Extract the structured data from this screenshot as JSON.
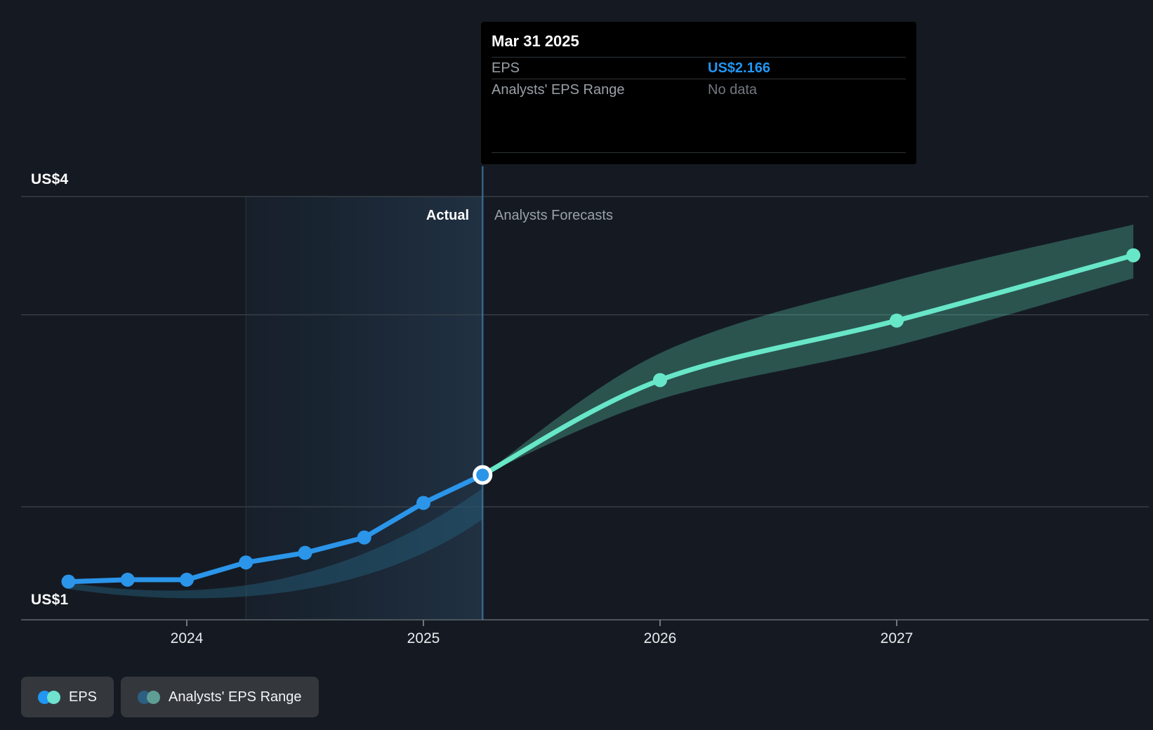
{
  "labels": {
    "actual": "Actual",
    "forecasts": "Analysts Forecasts",
    "y_top": "US$4",
    "y_bottom": "US$1"
  },
  "tooltip": {
    "title": "Mar 31 2025",
    "rows": [
      {
        "label": "EPS",
        "value": "US$2.166"
      },
      {
        "label": "Analysts' EPS Range",
        "value": "No data"
      }
    ]
  },
  "legend": [
    {
      "label": "EPS",
      "dot_colors": [
        "#2196f3",
        "#6fe3cd"
      ]
    },
    {
      "label": "Analysts' EPS Range",
      "dot_colors": [
        "#2d5f82",
        "#5f9e94"
      ]
    }
  ],
  "colors": {
    "background": "#151a22",
    "eps_line": "#2b95ea",
    "forecast_line": "#68e7c8",
    "forecast_band": "#5fd9b8",
    "history_band": "#245c78",
    "value_blue": "#2196f3",
    "gridline": "#3c434b",
    "axis": "#4d545b",
    "divider": "#4788b8",
    "highlight_from": "rgba(56,130,195,0.05)",
    "highlight_to": "rgba(93,170,235,0.16)"
  },
  "chart_data": {
    "type": "line",
    "title": "EPS actual vs analysts forecasts",
    "unit": "US$",
    "x_ticks": [
      2024,
      2025,
      2026,
      2027
    ],
    "x_tick_labels": [
      "2024",
      "2025",
      "2026",
      "2027"
    ],
    "y_axis": {
      "top_label": "US$4",
      "bottom_label": "US$1",
      "top_value": 4,
      "bottom_value": 1
    },
    "series": [
      {
        "name": "EPS",
        "kind": "actual",
        "points": [
          {
            "date": "Jun 30 2023",
            "t": 2023.5,
            "v": 1.61
          },
          {
            "date": "Sep 30 2023",
            "t": 2023.75,
            "v": 1.62
          },
          {
            "date": "Dec 31 2023",
            "t": 2024.0,
            "v": 1.62
          },
          {
            "date": "Mar 31 2024",
            "t": 2024.25,
            "v": 1.71
          },
          {
            "date": "Jun 30 2024",
            "t": 2024.5,
            "v": 1.76
          },
          {
            "date": "Sep 30 2024",
            "t": 2024.75,
            "v": 1.84
          },
          {
            "date": "Dec 31 2024",
            "t": 2025.0,
            "v": 2.02
          },
          {
            "date": "Mar 31 2025",
            "t": 2025.25,
            "v": 2.166
          }
        ]
      },
      {
        "name": "EPS (Analysts Forecast)",
        "kind": "forecast",
        "points": [
          {
            "date": "Mar 31 2025",
            "t": 2025.25,
            "v": 2.166
          },
          {
            "date": "Dec 31 2025",
            "t": 2026.0,
            "v": 2.66
          },
          {
            "date": "Dec 31 2026",
            "t": 2027.0,
            "v": 2.97
          },
          {
            "date": "Dec 31 2027",
            "t": 2028.0,
            "v": 3.31
          }
        ]
      }
    ],
    "band": {
      "name": "Analysts' EPS Range",
      "points": [
        {
          "date": "Mar 31 2025",
          "t": 2025.25,
          "lo": 2.166,
          "hi": 2.166
        },
        {
          "date": "Dec 31 2025",
          "t": 2026.0,
          "lo": 2.56,
          "hi": 2.8
        },
        {
          "date": "Dec 31 2026",
          "t": 2027.0,
          "lo": 2.84,
          "hi": 3.18
        },
        {
          "date": "Dec 31 2027",
          "t": 2028.0,
          "lo": 3.19,
          "hi": 3.47
        }
      ]
    },
    "annotations": {
      "divider_date": "Mar 31 2025",
      "highlight_span": [
        "Mar 31 2024",
        "Mar 31 2025"
      ],
      "hover_point": {
        "date": "Mar 31 2025",
        "eps": "US$2.166",
        "range": "No data"
      }
    }
  }
}
